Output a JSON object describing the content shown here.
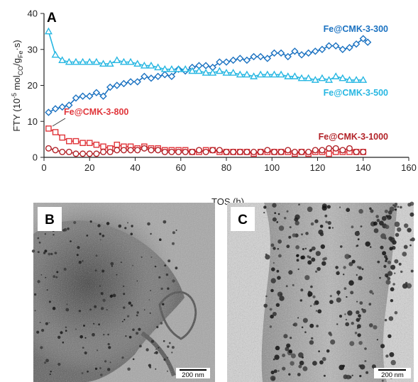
{
  "chart_data": {
    "type": "scatter",
    "panel_label": "A",
    "xlabel": "TOS (h)",
    "ylabel": "FTY (10⁻⁵ mol<sub>CO</sub>/g<sub>Fe</sub>·s)",
    "ylabel_parts": {
      "main": "FTY (10",
      "exp": "-5",
      "mid": " mol",
      "sub1": "CO",
      "slash": "/g",
      "sub2": "Fe",
      "end": "·s)"
    },
    "xlim": [
      0,
      160
    ],
    "ylim": [
      0,
      40
    ],
    "xticks": [
      "0",
      "20",
      "40",
      "60",
      "80",
      "100",
      "120",
      "140",
      "160"
    ],
    "yticks": [
      "0",
      "10",
      "20",
      "30",
      "40"
    ],
    "grid": false,
    "series": [
      {
        "name": "Fe@CMK-3-300",
        "color": "#1b72c1",
        "marker": "diamond",
        "x": [
          2,
          5,
          8,
          11,
          14,
          17,
          20,
          23,
          26,
          29,
          32,
          35,
          38,
          41,
          44,
          47,
          50,
          53,
          56,
          59,
          62,
          65,
          68,
          71,
          74,
          77,
          80,
          83,
          86,
          89,
          92,
          95,
          98,
          101,
          104,
          107,
          110,
          113,
          116,
          119,
          122,
          125,
          128,
          131,
          134,
          137,
          140,
          142
        ],
        "y": [
          12.5,
          13.5,
          14.0,
          14.5,
          16.5,
          17.0,
          17.0,
          18.0,
          17.0,
          19.5,
          20.0,
          20.5,
          21.0,
          21.0,
          22.5,
          22.0,
          22.5,
          23.0,
          22.5,
          24.5,
          24.0,
          25.0,
          25.5,
          25.5,
          25.0,
          26.5,
          26.5,
          27.0,
          27.5,
          27.0,
          28.0,
          28.0,
          27.5,
          29.0,
          29.0,
          28.0,
          29.5,
          28.5,
          29.0,
          29.5,
          30.0,
          31.0,
          31.0,
          30.0,
          30.5,
          31.5,
          33.0,
          32.0
        ]
      },
      {
        "name": "Fe@CMK-3-500",
        "color": "#27b7e2",
        "marker": "triangle",
        "x": [
          2,
          5,
          8,
          11,
          14,
          17,
          20,
          23,
          26,
          29,
          32,
          35,
          38,
          41,
          44,
          47,
          50,
          53,
          56,
          59,
          62,
          65,
          68,
          71,
          74,
          77,
          80,
          83,
          86,
          89,
          92,
          95,
          98,
          101,
          104,
          107,
          110,
          113,
          116,
          119,
          122,
          125,
          128,
          131,
          134,
          137,
          140
        ],
        "y": [
          35.0,
          28.5,
          27.0,
          26.5,
          26.5,
          26.5,
          26.5,
          26.5,
          26.0,
          26.0,
          27.0,
          26.5,
          26.5,
          26.0,
          25.5,
          25.5,
          25.0,
          24.5,
          24.5,
          24.5,
          24.5,
          24.0,
          24.0,
          23.5,
          23.5,
          24.0,
          23.5,
          23.5,
          23.0,
          23.0,
          22.5,
          23.0,
          23.0,
          23.0,
          23.0,
          22.5,
          22.5,
          22.0,
          22.0,
          21.5,
          22.0,
          21.5,
          22.5,
          22.0,
          21.5,
          21.5,
          21.5
        ]
      },
      {
        "name": "Fe@CMK-3-800",
        "color": "#e0353a",
        "marker": "square",
        "x": [
          2,
          5,
          8,
          11,
          14,
          17,
          20,
          23,
          26,
          29,
          32,
          35,
          38,
          41,
          44,
          47,
          50,
          53,
          56,
          59,
          62,
          65,
          68,
          71,
          74,
          77,
          80,
          83,
          86,
          89,
          92,
          95,
          98,
          101,
          104,
          107,
          110,
          113,
          116,
          119,
          122,
          125,
          128,
          131,
          134,
          137,
          140
        ],
        "y": [
          8.0,
          7.0,
          5.5,
          4.5,
          4.5,
          4.0,
          4.0,
          3.5,
          3.0,
          2.5,
          3.5,
          3.0,
          3.0,
          2.5,
          3.0,
          2.5,
          2.5,
          2.0,
          2.0,
          2.0,
          2.0,
          1.5,
          1.5,
          2.0,
          2.0,
          1.5,
          1.5,
          1.5,
          1.5,
          1.5,
          1.0,
          1.5,
          1.5,
          1.5,
          1.5,
          1.5,
          1.0,
          1.5,
          1.0,
          1.5,
          1.5,
          1.0,
          1.5,
          1.5,
          1.5,
          1.5,
          1.5
        ]
      },
      {
        "name": "Fe@CMK-3-1000",
        "color": "#b22228",
        "marker": "circle",
        "x": [
          2,
          5,
          8,
          11,
          14,
          17,
          20,
          23,
          26,
          29,
          32,
          35,
          38,
          41,
          44,
          47,
          50,
          53,
          56,
          59,
          62,
          65,
          68,
          71,
          74,
          77,
          80,
          83,
          86,
          89,
          92,
          95,
          98,
          101,
          104,
          107,
          110,
          113,
          116,
          119,
          122,
          125,
          128,
          131,
          134,
          137,
          140
        ],
        "y": [
          2.5,
          2.0,
          1.5,
          1.5,
          1.0,
          1.0,
          1.0,
          1.0,
          1.5,
          1.5,
          2.0,
          2.0,
          2.0,
          2.0,
          2.5,
          2.0,
          2.0,
          1.5,
          1.5,
          1.5,
          1.5,
          1.5,
          2.0,
          1.5,
          2.0,
          2.0,
          1.5,
          1.5,
          1.5,
          1.5,
          1.5,
          1.5,
          2.0,
          1.5,
          1.5,
          2.0,
          1.5,
          1.5,
          1.5,
          2.0,
          2.0,
          2.5,
          2.5,
          2.0,
          2.5,
          1.5,
          1.5
        ]
      }
    ]
  },
  "micrographs": [
    {
      "label": "B",
      "scale_bar": "200 nm"
    },
    {
      "label": "C",
      "scale_bar": "200 nm"
    }
  ]
}
